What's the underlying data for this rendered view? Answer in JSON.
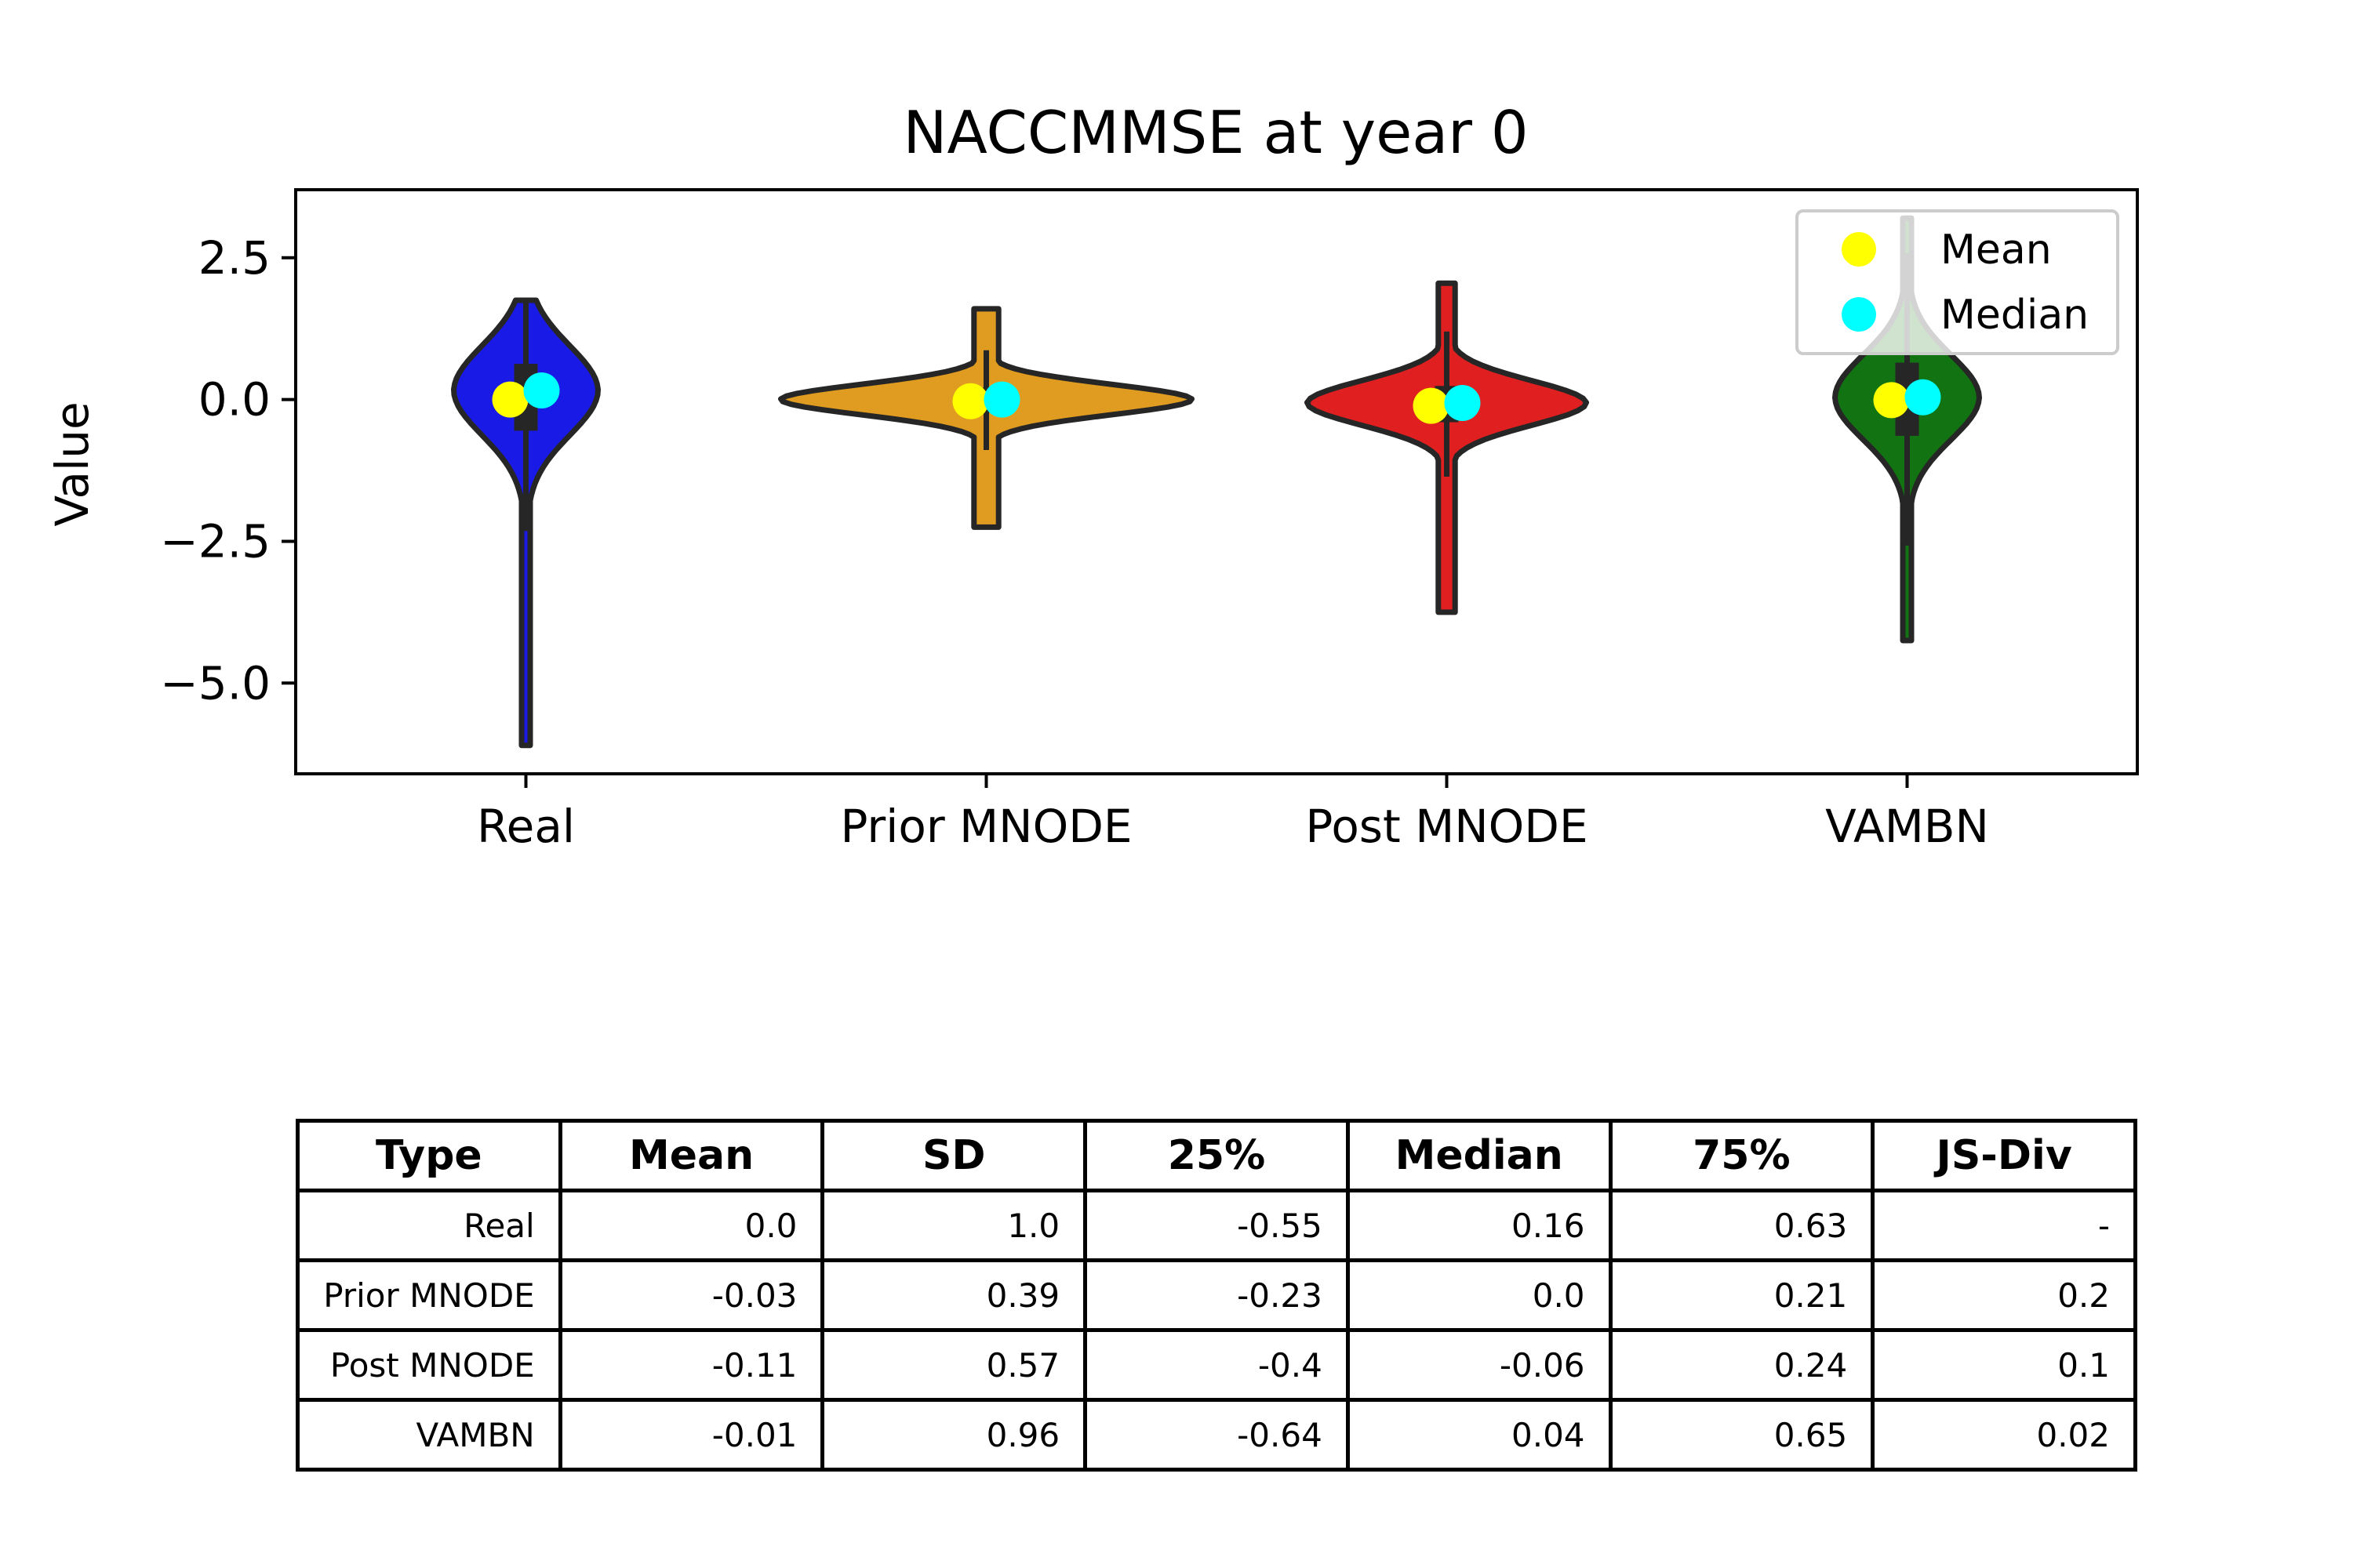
{
  "chart_data": {
    "type": "violin",
    "title": "NACCMMSE at year 0",
    "ylabel": "Value",
    "xlabel": "",
    "ylim": [
      -6.6,
      3.7
    ],
    "yticks": [
      2.5,
      0.0,
      -2.5,
      -5.0
    ],
    "ytick_labels": [
      "2.5",
      "0.0",
      "−2.5",
      "−5.0"
    ],
    "categories": [
      "Real",
      "Prior MNODE",
      "Post MNODE",
      "VAMBN"
    ],
    "legend": {
      "position": "top-right",
      "entries": [
        "Mean",
        "Median"
      ]
    },
    "series": [
      {
        "category": "Real",
        "color": "#1a1ae6",
        "mean": 0.0,
        "median": 0.16,
        "q1": -0.55,
        "q3": 0.63,
        "min": -6.1,
        "max": 1.75
      },
      {
        "category": "Prior MNODE",
        "color": "#e09c20",
        "mean": -0.03,
        "median": 0.0,
        "q1": -0.23,
        "q3": 0.21,
        "min": -2.25,
        "max": 1.6
      },
      {
        "category": "Post MNODE",
        "color": "#e02020",
        "mean": -0.11,
        "median": -0.06,
        "q1": -0.4,
        "q3": 0.24,
        "min": -3.75,
        "max": 2.05
      },
      {
        "category": "VAMBN",
        "color": "#117311",
        "mean": -0.01,
        "median": 0.04,
        "q1": -0.64,
        "q3": 0.65,
        "min": -4.25,
        "max": 3.2
      }
    ],
    "colors": {
      "mean": "#ffff00",
      "median": "#00ffff",
      "outline": "#262626"
    },
    "table": {
      "headers": [
        "Type",
        "Mean",
        "SD",
        "25%",
        "Median",
        "75%",
        "JS-Div"
      ],
      "rows": [
        [
          "Real",
          "0.0",
          "1.0",
          "-0.55",
          "0.16",
          "0.63",
          "-"
        ],
        [
          "Prior MNODE",
          "-0.03",
          "0.39",
          "-0.23",
          "0.0",
          "0.21",
          "0.2"
        ],
        [
          "Post MNODE",
          "-0.11",
          "0.57",
          "-0.4",
          "-0.06",
          "0.24",
          "0.1"
        ],
        [
          "VAMBN",
          "-0.01",
          "0.96",
          "-0.64",
          "0.04",
          "0.65",
          "0.02"
        ]
      ]
    }
  }
}
